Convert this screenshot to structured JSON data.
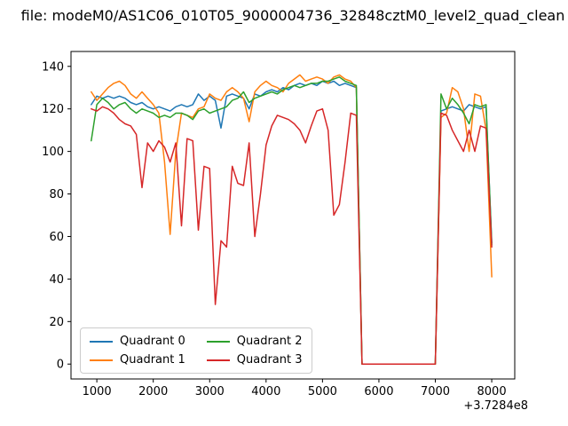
{
  "title": "file: modeM0/AS1C06_010T05_9000004736_32848cztM0_level2_quad_clean",
  "chart_data": {
    "type": "line",
    "title": "file: modeM0/AS1C06_010T05_9000004736_32848cztM0_level2_quad_clean",
    "xlabel": "",
    "ylabel": "",
    "x_offset_label": "+3.7284e8",
    "grid": false,
    "legend_position": "lower left",
    "xlim": [
      542,
      8408
    ],
    "ylim": [
      -7,
      147
    ],
    "x_ticks": [
      1000,
      2000,
      3000,
      4000,
      5000,
      6000,
      7000,
      8000
    ],
    "y_ticks": [
      0,
      20,
      40,
      60,
      80,
      100,
      120,
      140
    ],
    "x": [
      900,
      1000,
      1100,
      1200,
      1300,
      1400,
      1500,
      1600,
      1700,
      1800,
      1900,
      2000,
      2100,
      2200,
      2300,
      2400,
      2500,
      2600,
      2700,
      2800,
      2900,
      3000,
      3100,
      3200,
      3300,
      3400,
      3500,
      3600,
      3700,
      3800,
      3900,
      4000,
      4100,
      4200,
      4300,
      4400,
      4500,
      4600,
      4700,
      4800,
      4900,
      5000,
      5100,
      5200,
      5300,
      5400,
      5500,
      5600,
      5700,
      6000,
      6500,
      7000,
      7100,
      7200,
      7300,
      7400,
      7500,
      7600,
      7700,
      7800,
      7900,
      8000
    ],
    "series": [
      {
        "name": "Quadrant 0",
        "color": "#1f77b4",
        "values": [
          122,
          126,
          125,
          126,
          125,
          126,
          125,
          123,
          122,
          123,
          121,
          120,
          121,
          120,
          119,
          121,
          122,
          121,
          122,
          127,
          124,
          126,
          124,
          111,
          126,
          127,
          126,
          125,
          120,
          127,
          126,
          128,
          129,
          128,
          130,
          129,
          131,
          132,
          131,
          132,
          131,
          133,
          132,
          133,
          131,
          132,
          131,
          130,
          0,
          0,
          0,
          0,
          119,
          120,
          121,
          120,
          119,
          122,
          121,
          120,
          121,
          57
        ]
      },
      {
        "name": "Quadrant 1",
        "color": "#ff7f0e",
        "values": [
          128,
          124,
          127,
          130,
          132,
          133,
          131,
          127,
          125,
          128,
          125,
          122,
          118,
          95,
          61,
          100,
          118,
          117,
          116,
          120,
          121,
          127,
          125,
          124,
          128,
          130,
          128,
          125,
          114,
          128,
          131,
          133,
          131,
          130,
          128,
          132,
          134,
          136,
          133,
          134,
          135,
          134,
          132,
          135,
          136,
          134,
          133,
          130,
          0,
          0,
          0,
          0,
          116,
          118,
          130,
          128,
          120,
          100,
          127,
          126,
          110,
          41
        ]
      },
      {
        "name": "Quadrant 2",
        "color": "#2ca02c",
        "values": [
          105,
          122,
          125,
          123,
          120,
          122,
          123,
          120,
          118,
          120,
          119,
          118,
          116,
          117,
          116,
          118,
          118,
          117,
          115,
          119,
          120,
          118,
          119,
          120,
          121,
          124,
          125,
          128,
          123,
          125,
          126,
          127,
          128,
          127,
          129,
          130,
          131,
          130,
          131,
          132,
          132,
          133,
          133,
          134,
          135,
          133,
          132,
          131,
          0,
          0,
          0,
          0,
          127,
          120,
          125,
          122,
          118,
          113,
          122,
          121,
          122,
          56
        ]
      },
      {
        "name": "Quadrant 3",
        "color": "#d62728",
        "values": [
          120,
          119,
          121,
          120,
          118,
          115,
          113,
          112,
          108,
          83,
          104,
          100,
          105,
          102,
          95,
          104,
          65,
          106,
          105,
          63,
          93,
          92,
          28,
          58,
          55,
          93,
          85,
          84,
          104,
          60,
          80,
          103,
          112,
          117,
          116,
          115,
          113,
          110,
          104,
          112,
          119,
          120,
          110,
          70,
          75,
          95,
          118,
          117,
          0,
          0,
          0,
          0,
          118,
          117,
          110,
          105,
          100,
          110,
          100,
          112,
          111,
          55
        ]
      }
    ]
  }
}
